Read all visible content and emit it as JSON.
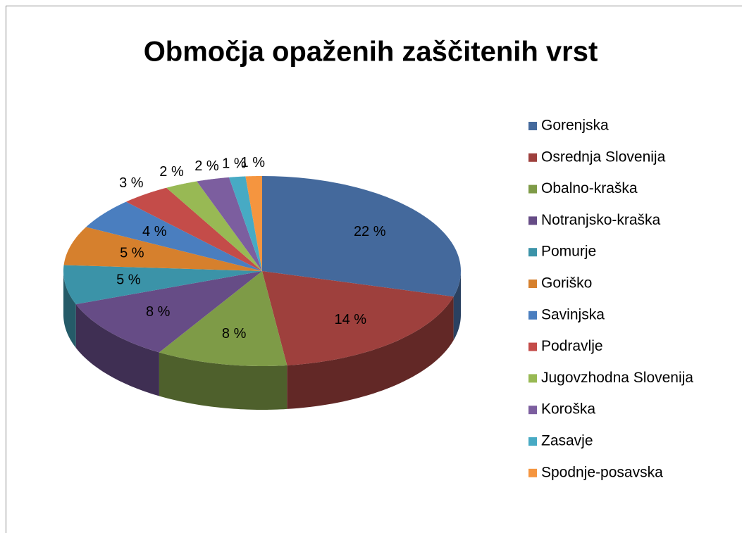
{
  "chart_data": {
    "type": "pie",
    "title": "Območja opaženih zaščitenih vrst",
    "categories": [
      "Gorenjska",
      "Osrednja Slovenija",
      "Obalno-kraška",
      "Notranjsko-kraška",
      "Pomurje",
      "Goriško",
      "Savinjska",
      "Podravlje",
      "Jugovzhodna Slovenija",
      "Koroška",
      "Zasavje",
      "Spodnje-posavska"
    ],
    "values": [
      22,
      14,
      8,
      8,
      5,
      5,
      4,
      3,
      2,
      2,
      1,
      1
    ],
    "value_labels": [
      "22 %",
      "14 %",
      "8 %",
      "8 %",
      "5 %",
      "5 %",
      "4 %",
      "3 %",
      "2 %",
      "2 %",
      "1 %",
      "1 %"
    ],
    "colors": [
      "#44699c",
      "#9e403d",
      "#7e9b47",
      "#664c86",
      "#3b93a8",
      "#d6802d",
      "#4a7ebf",
      "#c44c49",
      "#98b954",
      "#7c5e9f",
      "#47aac4",
      "#f5953f"
    ],
    "legend": "right"
  }
}
